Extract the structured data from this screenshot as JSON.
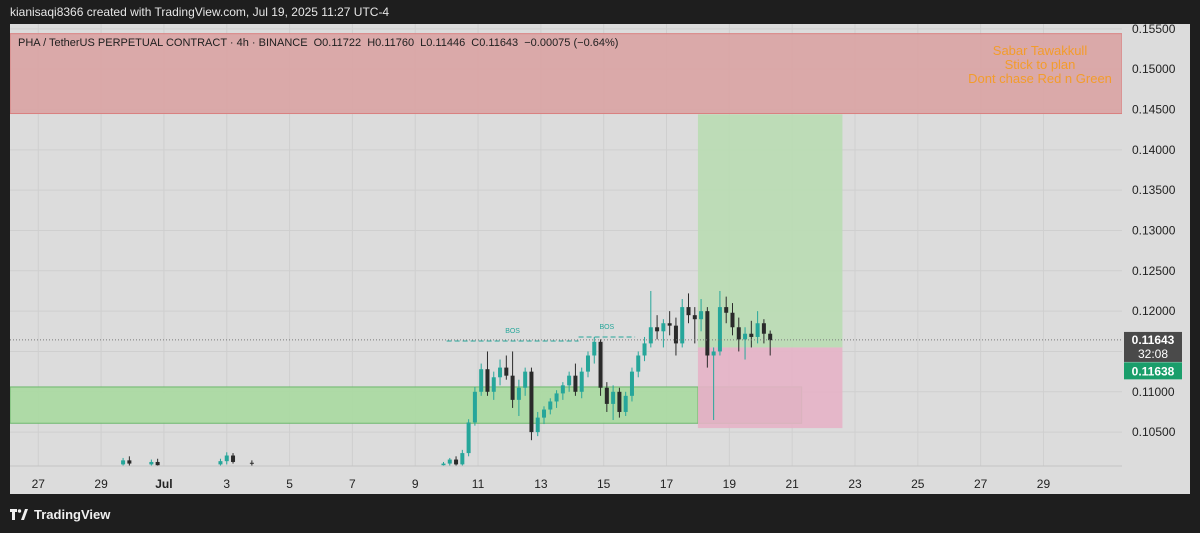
{
  "header": {
    "attribution": "kianisaqi8366 created with TradingView.com, Jul 19, 2025 11:27 UTC-4"
  },
  "legend": {
    "symbol": "PHA / TetherUS PERPETUAL CONTRACT · 4h · BINANCE",
    "open": "O0.11722",
    "high": "H0.11760",
    "low": "L0.11446",
    "close": "C0.11643",
    "change": "−0.00075 (−0.64%)"
  },
  "footer": {
    "logo_text": "TradingView"
  },
  "colors": {
    "up": "#26a69a",
    "down": "#2a2a2a",
    "supply_zone": "#d9a3a3",
    "demand_zone": "#a9d9a0",
    "target_zone": "#b9dcb3",
    "stop_zone": "#e6b3c6",
    "annotation_text": "#f39c2b",
    "price_label_bg": "#4a4a4a",
    "current_label_bg": "#1a9e6b"
  },
  "chart_data": {
    "type": "candlestick",
    "title": "PHA / TetherUS PERPETUAL CONTRACT · 4h · BINANCE",
    "timeframe": "4h",
    "x_tick_labels": [
      "27",
      "29",
      "Jul",
      "3",
      "5",
      "7",
      "9",
      "11",
      "13",
      "15",
      "17",
      "19",
      "21",
      "23",
      "25",
      "27",
      "29"
    ],
    "x_range_days": [
      -3.9,
      31.5
    ],
    "y_tick_labels": [
      "0.15500",
      "0.15000",
      "0.14500",
      "0.14000",
      "0.13500",
      "0.13000",
      "0.12500",
      "0.12000",
      "0.11500",
      "0.11000",
      "0.10500"
    ],
    "y_ticks": [
      0.155,
      0.15,
      0.145,
      0.14,
      0.135,
      0.13,
      0.125,
      0.12,
      0.115,
      0.11,
      0.105
    ],
    "ylim": [
      0.1008,
      0.1556
    ],
    "grid": true,
    "last_price": {
      "label": "0.11643",
      "countdown": "32:08",
      "value": 0.11643
    },
    "entry_price": {
      "label": "0.11638",
      "value": 0.11638
    },
    "annotations": {
      "lines": [
        "Sabar Tawakkull",
        "Stick to plan",
        "Dont chase Red n Green"
      ],
      "bos_labels": [
        "BOS",
        "BOS"
      ]
    },
    "bos_lines": [
      {
        "label": "BOS",
        "x_start_day": 10.0,
        "x_end_day": 14.2,
        "y": 0.1163
      },
      {
        "label": "BOS",
        "x_start_day": 14.2,
        "x_end_day": 16.0,
        "y": 0.1168
      }
    ],
    "zones": [
      {
        "name": "supply",
        "x_start_day": -4,
        "x_end_day": 31.5,
        "y_low": 0.1445,
        "y_high": 0.1544
      },
      {
        "name": "demand",
        "x_start_day": -4,
        "x_end_day": 21.3,
        "y_low": 0.1061,
        "y_high": 0.1106
      },
      {
        "name": "demand-inner",
        "x_start_day": 18.0,
        "x_end_day": 21.3,
        "y_low": 0.1061,
        "y_high": 0.1106
      },
      {
        "name": "target",
        "x_start_day": 18.0,
        "x_end_day": 22.6,
        "y_low": 0.1155,
        "y_high": 0.1444
      },
      {
        "name": "stop",
        "x_start_day": 18.0,
        "x_end_day": 22.6,
        "y_low": 0.1055,
        "y_high": 0.1155
      }
    ],
    "candles": [
      {
        "d": -0.3,
        "o": 0.101,
        "h": 0.1018,
        "l": 0.1006,
        "c": 0.1015
      },
      {
        "d": -0.1,
        "o": 0.1015,
        "h": 0.102,
        "l": 0.1008,
        "c": 0.1011
      },
      {
        "d": 0.6,
        "o": 0.101,
        "h": 0.1016,
        "l": 0.1006,
        "c": 0.1013
      },
      {
        "d": 0.8,
        "o": 0.1013,
        "h": 0.1017,
        "l": 0.1007,
        "c": 0.1009
      },
      {
        "d": 2.8,
        "o": 0.101,
        "h": 0.1017,
        "l": 0.1006,
        "c": 0.1014
      },
      {
        "d": 3.0,
        "o": 0.1014,
        "h": 0.1025,
        "l": 0.101,
        "c": 0.1021
      },
      {
        "d": 3.2,
        "o": 0.1021,
        "h": 0.1024,
        "l": 0.1011,
        "c": 0.1013
      },
      {
        "d": 3.8,
        "o": 0.1012,
        "h": 0.1015,
        "l": 0.1007,
        "c": 0.1011
      },
      {
        "d": 9.9,
        "o": 0.1009,
        "h": 0.1013,
        "l": 0.1004,
        "c": 0.1011
      },
      {
        "d": 10.1,
        "o": 0.1011,
        "h": 0.1018,
        "l": 0.1006,
        "c": 0.1016
      },
      {
        "d": 10.3,
        "o": 0.1016,
        "h": 0.102,
        "l": 0.1008,
        "c": 0.101
      },
      {
        "d": 10.5,
        "o": 0.101,
        "h": 0.1028,
        "l": 0.1008,
        "c": 0.1024
      },
      {
        "d": 10.7,
        "o": 0.1024,
        "h": 0.1066,
        "l": 0.102,
        "c": 0.1062
      },
      {
        "d": 10.9,
        "o": 0.1062,
        "h": 0.1106,
        "l": 0.1058,
        "c": 0.11
      },
      {
        "d": 11.1,
        "o": 0.11,
        "h": 0.1135,
        "l": 0.1095,
        "c": 0.1128
      },
      {
        "d": 11.3,
        "o": 0.1128,
        "h": 0.115,
        "l": 0.1095,
        "c": 0.11
      },
      {
        "d": 11.5,
        "o": 0.11,
        "h": 0.1125,
        "l": 0.109,
        "c": 0.1118
      },
      {
        "d": 11.7,
        "o": 0.1118,
        "h": 0.114,
        "l": 0.1108,
        "c": 0.113
      },
      {
        "d": 11.9,
        "o": 0.113,
        "h": 0.1145,
        "l": 0.1115,
        "c": 0.112
      },
      {
        "d": 12.1,
        "o": 0.112,
        "h": 0.115,
        "l": 0.108,
        "c": 0.109
      },
      {
        "d": 12.3,
        "o": 0.109,
        "h": 0.1115,
        "l": 0.107,
        "c": 0.1105
      },
      {
        "d": 12.5,
        "o": 0.1105,
        "h": 0.113,
        "l": 0.1095,
        "c": 0.1125
      },
      {
        "d": 12.7,
        "o": 0.1125,
        "h": 0.113,
        "l": 0.104,
        "c": 0.105
      },
      {
        "d": 12.9,
        "o": 0.105,
        "h": 0.1075,
        "l": 0.1045,
        "c": 0.1068
      },
      {
        "d": 13.1,
        "o": 0.1068,
        "h": 0.1082,
        "l": 0.106,
        "c": 0.1078
      },
      {
        "d": 13.3,
        "o": 0.1078,
        "h": 0.1092,
        "l": 0.1072,
        "c": 0.1088
      },
      {
        "d": 13.5,
        "o": 0.1088,
        "h": 0.1102,
        "l": 0.108,
        "c": 0.1098
      },
      {
        "d": 13.7,
        "o": 0.1098,
        "h": 0.1112,
        "l": 0.109,
        "c": 0.1108
      },
      {
        "d": 13.9,
        "o": 0.1108,
        "h": 0.1125,
        "l": 0.11,
        "c": 0.112
      },
      {
        "d": 14.1,
        "o": 0.112,
        "h": 0.1135,
        "l": 0.1095,
        "c": 0.11
      },
      {
        "d": 14.3,
        "o": 0.11,
        "h": 0.113,
        "l": 0.1092,
        "c": 0.1125
      },
      {
        "d": 14.5,
        "o": 0.1125,
        "h": 0.115,
        "l": 0.1118,
        "c": 0.1145
      },
      {
        "d": 14.7,
        "o": 0.1145,
        "h": 0.1168,
        "l": 0.1135,
        "c": 0.1162
      },
      {
        "d": 14.9,
        "o": 0.1162,
        "h": 0.1165,
        "l": 0.1095,
        "c": 0.1105
      },
      {
        "d": 15.1,
        "o": 0.1105,
        "h": 0.1112,
        "l": 0.1075,
        "c": 0.1085
      },
      {
        "d": 15.3,
        "o": 0.1085,
        "h": 0.1108,
        "l": 0.1065,
        "c": 0.11
      },
      {
        "d": 15.5,
        "o": 0.11,
        "h": 0.1105,
        "l": 0.1068,
        "c": 0.1075
      },
      {
        "d": 15.7,
        "o": 0.1075,
        "h": 0.11,
        "l": 0.107,
        "c": 0.1095
      },
      {
        "d": 15.9,
        "o": 0.1095,
        "h": 0.113,
        "l": 0.1088,
        "c": 0.1125
      },
      {
        "d": 16.1,
        "o": 0.1125,
        "h": 0.115,
        "l": 0.1118,
        "c": 0.1145
      },
      {
        "d": 16.3,
        "o": 0.1145,
        "h": 0.1168,
        "l": 0.1138,
        "c": 0.116
      },
      {
        "d": 16.5,
        "o": 0.116,
        "h": 0.1225,
        "l": 0.1155,
        "c": 0.118
      },
      {
        "d": 16.7,
        "o": 0.118,
        "h": 0.1195,
        "l": 0.1165,
        "c": 0.1175
      },
      {
        "d": 16.9,
        "o": 0.1175,
        "h": 0.119,
        "l": 0.1155,
        "c": 0.1185
      },
      {
        "d": 17.1,
        "o": 0.1185,
        "h": 0.12,
        "l": 0.117,
        "c": 0.1182
      },
      {
        "d": 17.3,
        "o": 0.1182,
        "h": 0.1192,
        "l": 0.1145,
        "c": 0.116
      },
      {
        "d": 17.5,
        "o": 0.116,
        "h": 0.1215,
        "l": 0.1155,
        "c": 0.1205
      },
      {
        "d": 17.7,
        "o": 0.1205,
        "h": 0.1222,
        "l": 0.1185,
        "c": 0.1195
      },
      {
        "d": 17.9,
        "o": 0.1195,
        "h": 0.1205,
        "l": 0.116,
        "c": 0.119
      },
      {
        "d": 18.1,
        "o": 0.119,
        "h": 0.1215,
        "l": 0.1175,
        "c": 0.12
      },
      {
        "d": 18.3,
        "o": 0.12,
        "h": 0.1205,
        "l": 0.113,
        "c": 0.1145
      },
      {
        "d": 18.5,
        "o": 0.1145,
        "h": 0.1155,
        "l": 0.1065,
        "c": 0.115
      },
      {
        "d": 18.7,
        "o": 0.115,
        "h": 0.1225,
        "l": 0.1145,
        "c": 0.1205
      },
      {
        "d": 18.9,
        "o": 0.1205,
        "h": 0.1218,
        "l": 0.1185,
        "c": 0.1198
      },
      {
        "d": 19.1,
        "o": 0.1198,
        "h": 0.121,
        "l": 0.117,
        "c": 0.118
      },
      {
        "d": 19.3,
        "o": 0.118,
        "h": 0.1192,
        "l": 0.115,
        "c": 0.1165
      },
      {
        "d": 19.5,
        "o": 0.1165,
        "h": 0.118,
        "l": 0.114,
        "c": 0.1172
      },
      {
        "d": 19.7,
        "o": 0.1172,
        "h": 0.1188,
        "l": 0.1155,
        "c": 0.1168
      },
      {
        "d": 19.9,
        "o": 0.1168,
        "h": 0.12,
        "l": 0.116,
        "c": 0.1185
      },
      {
        "d": 20.1,
        "o": 0.1185,
        "h": 0.119,
        "l": 0.116,
        "c": 0.1172
      },
      {
        "d": 20.3,
        "o": 0.1172,
        "h": 0.1176,
        "l": 0.1145,
        "c": 0.1164
      }
    ]
  }
}
